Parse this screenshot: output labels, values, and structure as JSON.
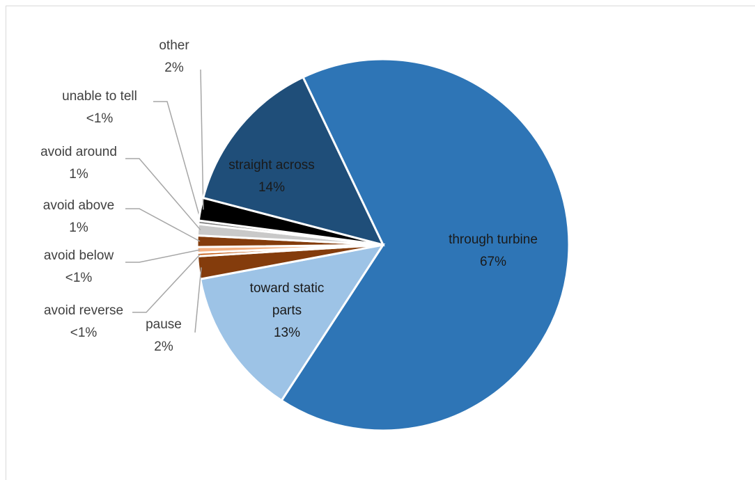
{
  "chart_data": {
    "type": "pie",
    "categories": [
      "through turbine",
      "toward static parts",
      "pause",
      "avoid reverse",
      "avoid below",
      "avoid above",
      "avoid around",
      "unable to tell",
      "other",
      "straight across"
    ],
    "values": [
      67,
      13,
      2,
      0.3,
      0.5,
      1,
      1,
      0.3,
      2,
      14
    ],
    "value_labels": [
      "67%",
      "13%",
      "2%",
      "<1%",
      "<1%",
      "1%",
      "1%",
      "<1%",
      "2%",
      "14%"
    ],
    "colors": [
      "#2e75b6",
      "#9dc3e6",
      "#843c0c",
      "#c55a11",
      "#f4b183",
      "#843c0c",
      "#c9c9c9",
      "#7f7f7f",
      "#000000",
      "#1f4e79"
    ]
  }
}
